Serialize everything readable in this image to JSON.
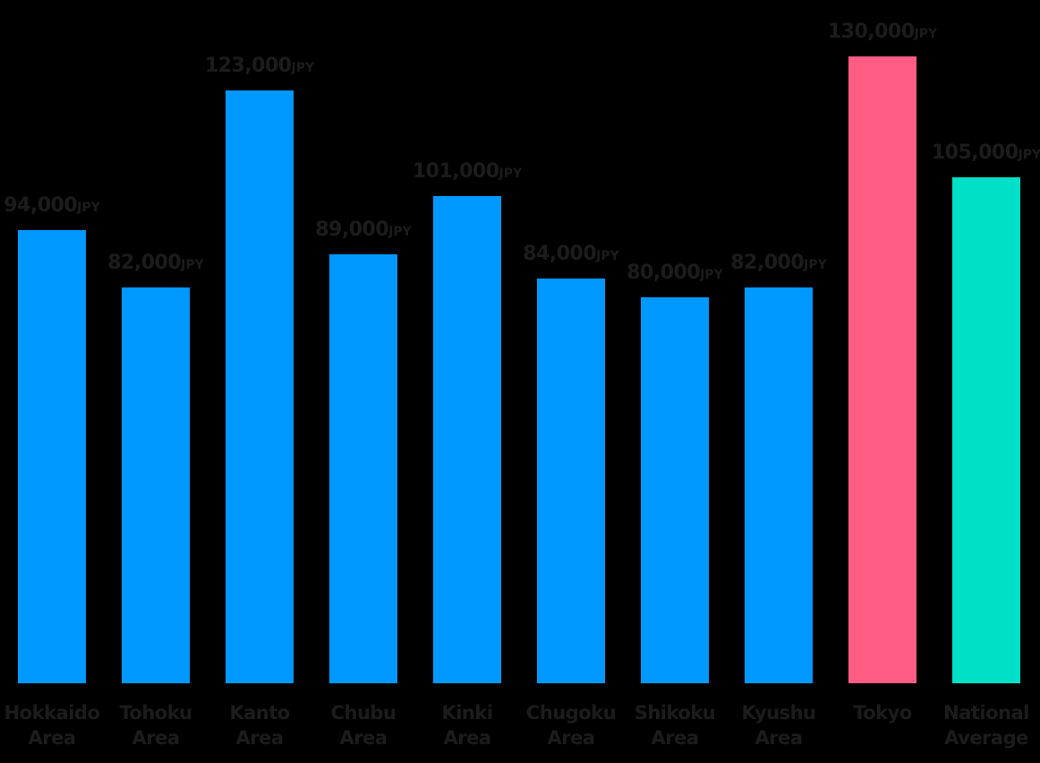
{
  "chart_data": {
    "type": "bar",
    "title": "",
    "xlabel": "",
    "ylabel": "",
    "unit": "JPY",
    "ylim": [
      0,
      130000
    ],
    "grid": false,
    "legend": "none",
    "categories": [
      "Hokkaido Area",
      "Tohoku Area",
      "Kanto Area",
      "Chubu Area",
      "Kinki Area",
      "Chugoku Area",
      "Shikoku Area",
      "Kyushu Area",
      "Tokyo",
      "National Average"
    ],
    "values": [
      94000,
      82000,
      123000,
      89000,
      101000,
      84000,
      80000,
      82000,
      130000,
      105000
    ],
    "colors": [
      "#0099ff",
      "#0099ff",
      "#0099ff",
      "#0099ff",
      "#0099ff",
      "#0099ff",
      "#0099ff",
      "#0099ff",
      "#ff5c84",
      "#00e0c6"
    ]
  },
  "bars": [
    {
      "line1": "Hokkaido",
      "line2": "Area",
      "value_text": "94,000",
      "unit": "JPY"
    },
    {
      "line1": "Tohoku",
      "line2": "Area",
      "value_text": "82,000",
      "unit": "JPY"
    },
    {
      "line1": "Kanto",
      "line2": "Area",
      "value_text": "123,000",
      "unit": "JPY"
    },
    {
      "line1": "Chubu",
      "line2": "Area",
      "value_text": "89,000",
      "unit": "JPY"
    },
    {
      "line1": "Kinki",
      "line2": "Area",
      "value_text": "101,000",
      "unit": "JPY"
    },
    {
      "line1": "Chugoku",
      "line2": "Area",
      "value_text": "84,000",
      "unit": "JPY"
    },
    {
      "line1": "Shikoku",
      "line2": "Area",
      "value_text": "80,000",
      "unit": "JPY"
    },
    {
      "line1": "Kyushu",
      "line2": "Area",
      "value_text": "82,000",
      "unit": "JPY"
    },
    {
      "line1": "Tokyo",
      "line2": "",
      "value_text": "130,000",
      "unit": "JPY"
    },
    {
      "line1": "National",
      "line2": "Average",
      "value_text": "105,000",
      "unit": "JPY"
    }
  ]
}
